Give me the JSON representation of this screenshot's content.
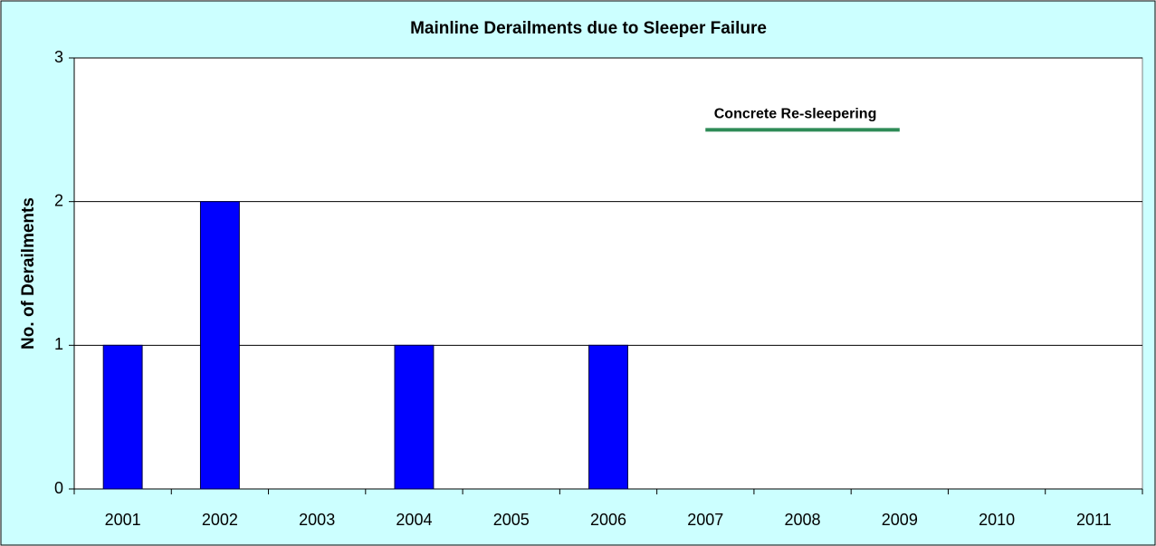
{
  "chart_data": {
    "type": "bar",
    "title": "Mainline Derailments due to Sleeper Failure",
    "y_label": "No. of Derailments",
    "categories": [
      "2001",
      "2002",
      "2003",
      "2004",
      "2005",
      "2006",
      "2007",
      "2008",
      "2009",
      "2010",
      "2011"
    ],
    "values": [
      1,
      2,
      0,
      1,
      0,
      1,
      0,
      0,
      0,
      0,
      0
    ],
    "color": "#0000ff",
    "ylim": [
      0,
      3
    ],
    "yticks": [
      0,
      1,
      2,
      3
    ],
    "grid": true,
    "annotations": [
      {
        "text": "Concrete Re-sleepering",
        "x": [
          "2007",
          "2009"
        ],
        "y": 2.5,
        "color": "#2e8b57"
      }
    ]
  }
}
